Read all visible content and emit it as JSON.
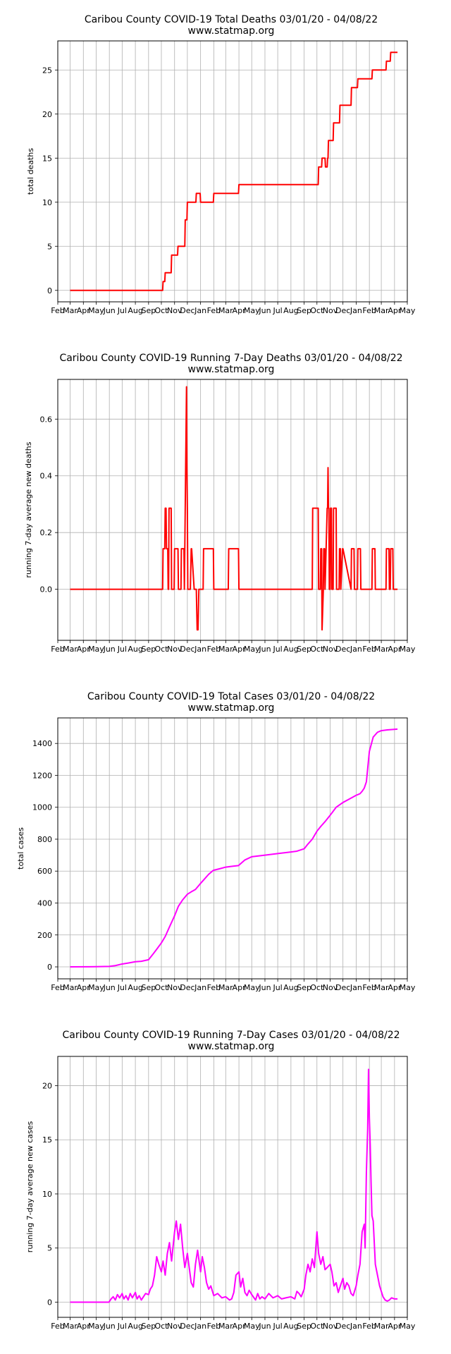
{
  "chart_data": [
    {
      "type": "line",
      "title": "Caribou County COVID-19 Total Deaths 03/01/20 - 04/08/22",
      "subtitle": "www.statmap.org",
      "xlabel": "",
      "ylabel": "total deaths",
      "x_tick_labels": [
        "Feb",
        "Mar",
        "Apr",
        "May",
        "Jun",
        "Jul",
        "Aug",
        "Sep",
        "Oct",
        "Nov",
        "Dec",
        "Jan",
        "Feb",
        "Mar",
        "Apr",
        "May",
        "Jun",
        "Jul",
        "Aug",
        "Sep",
        "Oct",
        "Nov",
        "Dec",
        "Jan",
        "Feb",
        "Mar",
        "Apr",
        "May"
      ],
      "y_ticks": [
        0,
        5,
        10,
        15,
        20,
        25
      ],
      "xlim": [
        "2020-02-01",
        "2022-05-01"
      ],
      "ylim": [
        -1.3,
        28.3
      ],
      "grid": true,
      "color": "#ff0000",
      "series": [
        {
          "x": [
            "2020-03-01",
            "2020-10-04",
            "2020-10-05",
            "2020-10-09",
            "2020-10-10",
            "2020-10-16",
            "2020-10-17",
            "2020-10-24",
            "2020-10-25",
            "2020-11-01",
            "2020-11-02",
            "2020-11-08",
            "2020-11-09",
            "2020-11-13",
            "2020-11-14",
            "2020-11-25",
            "2020-11-26",
            "2020-11-30",
            "2020-12-01",
            "2020-12-03",
            "2020-12-04",
            "2020-12-21",
            "2020-12-22",
            "2020-12-31",
            "2021-01-01",
            "2021-01-31",
            "2021-02-01",
            "2021-02-28",
            "2021-03-01",
            "2021-03-31",
            "2021-04-01",
            "2021-09-20",
            "2021-09-21",
            "2021-10-04",
            "2021-10-05",
            "2021-10-08",
            "2021-10-09",
            "2021-10-12",
            "2021-10-13",
            "2021-10-20",
            "2021-10-21",
            "2021-10-25",
            "2021-10-26",
            "2021-10-27",
            "2021-10-28",
            "2021-11-08",
            "2021-11-09",
            "2021-11-23",
            "2021-11-24",
            "2021-12-20",
            "2021-12-21",
            "2022-01-04",
            "2022-01-05",
            "2022-02-07",
            "2022-02-08",
            "2022-03-12",
            "2022-03-13",
            "2022-03-22",
            "2022-03-23",
            "2022-04-08"
          ],
          "y": [
            0,
            0,
            1,
            1,
            2,
            2,
            2,
            2,
            4,
            4,
            4,
            4,
            5,
            5,
            5,
            5,
            8,
            8,
            10,
            10,
            10,
            10,
            11,
            11,
            10,
            10,
            11,
            11,
            11,
            11,
            12,
            12,
            12,
            12,
            14,
            14,
            14,
            14,
            15,
            15,
            14,
            14,
            15,
            15,
            17,
            17,
            19,
            19,
            21,
            21,
            23,
            23,
            24,
            24,
            25,
            25,
            26,
            26,
            27,
            27
          ]
        }
      ]
    },
    {
      "type": "line",
      "title": "Caribou County COVID-19 Running 7-Day Deaths 03/01/20 - 04/08/22",
      "subtitle": "www.statmap.org",
      "xlabel": "",
      "ylabel": "running 7-day average new deaths",
      "x_tick_labels": [
        "Feb",
        "Mar",
        "Apr",
        "May",
        "Jun",
        "Jul",
        "Aug",
        "Sep",
        "Oct",
        "Nov",
        "Dec",
        "Jan",
        "Feb",
        "Mar",
        "Apr",
        "May",
        "Jun",
        "Jul",
        "Aug",
        "Sep",
        "Oct",
        "Nov",
        "Dec",
        "Jan",
        "Feb",
        "Mar",
        "Apr",
        "May"
      ],
      "y_ticks": [
        0.0,
        0.2,
        0.4,
        0.6
      ],
      "y_tick_labels": [
        "0.0",
        "0.2",
        "0.4",
        "0.6"
      ],
      "xlim": [
        "2020-02-01",
        "2022-05-01"
      ],
      "ylim": [
        -0.18,
        0.74
      ],
      "grid": true,
      "color": "#ff0000",
      "series": [
        {
          "x": [
            "2020-03-01",
            "2020-10-04",
            "2020-10-05",
            "2020-10-09",
            "2020-10-10",
            "2020-10-12",
            "2020-10-13",
            "2020-10-16",
            "2020-10-17",
            "2020-10-18",
            "2020-10-19",
            "2020-10-24",
            "2020-10-25",
            "2020-10-31",
            "2020-11-01",
            "2020-11-09",
            "2020-11-10",
            "2020-11-16",
            "2020-11-17",
            "2020-11-23",
            "2020-11-24",
            "2020-11-26",
            "2020-11-27",
            "2020-11-28",
            "2020-11-29",
            "2020-11-30",
            "2020-12-01",
            "2020-12-02",
            "2020-12-03",
            "2020-12-08",
            "2020-12-10",
            "2020-12-11",
            "2020-12-17",
            "2020-12-22",
            "2020-12-24",
            "2020-12-26",
            "2020-12-28",
            "2020-12-31",
            "2021-01-01",
            "2021-01-07",
            "2021-01-08",
            "2021-01-31",
            "2021-02-01",
            "2021-02-07",
            "2021-02-08",
            "2021-03-07",
            "2021-03-08",
            "2021-03-31",
            "2021-04-01",
            "2021-04-07",
            "2021-04-08",
            "2021-09-20",
            "2021-09-21",
            "2021-10-04",
            "2021-10-05",
            "2021-10-09",
            "2021-10-10",
            "2021-10-12",
            "2021-10-13",
            "2021-10-16",
            "2021-10-17",
            "2021-10-19",
            "2021-10-20",
            "2021-10-25",
            "2021-10-26",
            "2021-10-27",
            "2021-10-28",
            "2021-10-29",
            "2021-10-30",
            "2021-11-01",
            "2021-11-02",
            "2021-11-04",
            "2021-11-05",
            "2021-11-08",
            "2021-11-09",
            "2021-11-15",
            "2021-11-16",
            "2021-11-22",
            "2021-11-23",
            "2021-11-25",
            "2021-11-26",
            "2021-11-30",
            "2021-12-01",
            "2021-12-20",
            "2021-12-21",
            "2021-12-27",
            "2021-12-28",
            "2022-01-04",
            "2022-01-05",
            "2022-01-11",
            "2022-01-12",
            "2022-02-07",
            "2022-02-08",
            "2022-02-14",
            "2022-02-15",
            "2022-03-12",
            "2022-03-13",
            "2022-03-19",
            "2022-03-20",
            "2022-03-22",
            "2022-03-23",
            "2022-03-28",
            "2022-03-29",
            "2022-04-08"
          ],
          "y": [
            0,
            0,
            0.143,
            0.143,
            0.286,
            0.286,
            0.143,
            0.143,
            0,
            0,
            0.286,
            0.286,
            0,
            0,
            0.143,
            0.143,
            0,
            0,
            0.143,
            0.143,
            0,
            0.286,
            0.429,
            0.571,
            0.714,
            0.429,
            0.286,
            0,
            0,
            0,
            0.143,
            0.143,
            0,
            0,
            -0.143,
            -0.143,
            0,
            0,
            0,
            0,
            0.143,
            0.143,
            0,
            0,
            0,
            0,
            0.143,
            0.143,
            0,
            0,
            0,
            0,
            0.286,
            0.286,
            0,
            0,
            0.143,
            0.143,
            -0.143,
            0,
            0.143,
            0.143,
            0,
            0.286,
            0.286,
            0.429,
            0.286,
            0.286,
            0,
            0,
            0.286,
            0.286,
            0,
            0,
            0.286,
            0.286,
            0,
            0,
            0.143,
            0.143,
            0,
            0.143,
            0.143,
            0,
            0.143,
            0.143,
            0,
            0,
            0.143,
            0.143,
            0,
            0,
            0.143,
            0.143,
            0,
            0,
            0.143,
            0.143,
            0,
            0,
            0.143,
            0.143,
            0,
            0
          ]
        }
      ]
    },
    {
      "type": "line",
      "title": "Caribou County COVID-19 Total Cases 03/01/20 - 04/08/22",
      "subtitle": "www.statmap.org",
      "xlabel": "",
      "ylabel": "total cases",
      "x_tick_labels": [
        "Feb",
        "Mar",
        "Apr",
        "May",
        "Jun",
        "Jul",
        "Aug",
        "Sep",
        "Oct",
        "Nov",
        "Dec",
        "Jan",
        "Feb",
        "Mar",
        "Apr",
        "May",
        "Jun",
        "Jul",
        "Aug",
        "Sep",
        "Oct",
        "Nov",
        "Dec",
        "Jan",
        "Feb",
        "Mar",
        "Apr",
        "May"
      ],
      "y_ticks": [
        0,
        200,
        400,
        600,
        800,
        1000,
        1200,
        1400
      ],
      "xlim": [
        "2020-02-01",
        "2022-05-01"
      ],
      "ylim": [
        -75,
        1560
      ],
      "grid": true,
      "color": "#ff00ff",
      "series": [
        {
          "x": [
            "2020-03-01",
            "2020-05-01",
            "2020-06-01",
            "2020-06-15",
            "2020-07-01",
            "2020-07-15",
            "2020-08-01",
            "2020-08-15",
            "2020-09-01",
            "2020-09-10",
            "2020-09-20",
            "2020-10-01",
            "2020-10-10",
            "2020-10-20",
            "2020-11-01",
            "2020-11-10",
            "2020-11-20",
            "2020-12-01",
            "2020-12-10",
            "2020-12-20",
            "2020-12-31",
            "2021-01-10",
            "2021-01-20",
            "2021-01-31",
            "2021-02-15",
            "2021-03-01",
            "2021-03-15",
            "2021-03-31",
            "2021-04-15",
            "2021-05-01",
            "2021-06-01",
            "2021-07-01",
            "2021-08-01",
            "2021-08-15",
            "2021-09-01",
            "2021-09-10",
            "2021-09-20",
            "2021-10-01",
            "2021-10-10",
            "2021-10-20",
            "2021-11-01",
            "2021-11-15",
            "2021-12-01",
            "2021-12-15",
            "2022-01-01",
            "2022-01-10",
            "2022-01-15",
            "2022-01-20",
            "2022-01-25",
            "2022-02-01",
            "2022-02-10",
            "2022-02-20",
            "2022-03-01",
            "2022-03-15",
            "2022-04-08"
          ],
          "y": [
            0,
            1,
            3,
            8,
            18,
            24,
            32,
            35,
            45,
            75,
            110,
            150,
            190,
            250,
            320,
            380,
            420,
            455,
            470,
            485,
            520,
            550,
            580,
            605,
            615,
            625,
            630,
            635,
            670,
            690,
            700,
            710,
            720,
            725,
            740,
            770,
            800,
            850,
            880,
            910,
            950,
            1000,
            1030,
            1050,
            1075,
            1085,
            1100,
            1120,
            1160,
            1350,
            1440,
            1470,
            1480,
            1485,
            1490
          ]
        }
      ]
    },
    {
      "type": "line",
      "title": "Caribou County COVID-19 Running 7-Day Cases 03/01/20 - 04/08/22",
      "subtitle": "www.statmap.org",
      "xlabel": "",
      "ylabel": "running 7-day average new cases",
      "x_tick_labels": [
        "Feb",
        "Mar",
        "Apr",
        "May",
        "Jun",
        "Jul",
        "Aug",
        "Sep",
        "Oct",
        "Nov",
        "Dec",
        "Jan",
        "Feb",
        "Mar",
        "Apr",
        "May",
        "Jun",
        "Jul",
        "Aug",
        "Sep",
        "Oct",
        "Nov",
        "Dec",
        "Jan",
        "Feb",
        "Mar",
        "Apr",
        "May"
      ],
      "y_ticks": [
        0,
        5,
        10,
        15,
        20
      ],
      "xlim": [
        "2020-02-01",
        "2022-05-01"
      ],
      "ylim": [
        -1.4,
        22.7
      ],
      "grid": true,
      "color": "#ff00ff",
      "series": [
        {
          "x": [
            "2020-03-01",
            "2020-05-31",
            "2020-06-05",
            "2020-06-10",
            "2020-06-15",
            "2020-06-20",
            "2020-06-25",
            "2020-07-01",
            "2020-07-05",
            "2020-07-10",
            "2020-07-15",
            "2020-07-20",
            "2020-07-25",
            "2020-08-01",
            "2020-08-05",
            "2020-08-10",
            "2020-08-15",
            "2020-08-20",
            "2020-08-25",
            "2020-09-01",
            "2020-09-05",
            "2020-09-10",
            "2020-09-15",
            "2020-09-20",
            "2020-09-25",
            "2020-10-01",
            "2020-10-05",
            "2020-10-10",
            "2020-10-15",
            "2020-10-20",
            "2020-10-25",
            "2020-11-01",
            "2020-11-05",
            "2020-11-10",
            "2020-11-15",
            "2020-11-20",
            "2020-11-25",
            "2020-12-01",
            "2020-12-05",
            "2020-12-10",
            "2020-12-15",
            "2020-12-20",
            "2020-12-25",
            "2021-01-01",
            "2021-01-05",
            "2021-01-10",
            "2021-01-15",
            "2021-01-20",
            "2021-01-25",
            "2021-02-01",
            "2021-02-10",
            "2021-02-20",
            "2021-03-01",
            "2021-03-10",
            "2021-03-15",
            "2021-03-20",
            "2021-03-25",
            "2021-04-01",
            "2021-04-05",
            "2021-04-10",
            "2021-04-15",
            "2021-04-20",
            "2021-04-25",
            "2021-05-01",
            "2021-05-10",
            "2021-05-15",
            "2021-05-20",
            "2021-05-25",
            "2021-06-01",
            "2021-06-10",
            "2021-06-20",
            "2021-07-01",
            "2021-07-10",
            "2021-07-20",
            "2021-08-01",
            "2021-08-10",
            "2021-08-15",
            "2021-08-20",
            "2021-08-25",
            "2021-09-01",
            "2021-09-05",
            "2021-09-10",
            "2021-09-15",
            "2021-09-20",
            "2021-09-25",
            "2021-10-01",
            "2021-10-05",
            "2021-10-10",
            "2021-10-15",
            "2021-10-20",
            "2021-10-25",
            "2021-11-01",
            "2021-11-05",
            "2021-11-10",
            "2021-11-15",
            "2021-11-20",
            "2021-11-25",
            "2021-12-01",
            "2021-12-05",
            "2021-12-10",
            "2021-12-15",
            "2021-12-20",
            "2021-12-25",
            "2022-01-01",
            "2022-01-05",
            "2022-01-10",
            "2022-01-15",
            "2022-01-20",
            "2022-01-22",
            "2022-01-25",
            "2022-01-28",
            "2022-01-30",
            "2022-02-01",
            "2022-02-03",
            "2022-02-05",
            "2022-02-07",
            "2022-02-10",
            "2022-02-15",
            "2022-02-20",
            "2022-02-25",
            "2022-03-01",
            "2022-03-05",
            "2022-03-10",
            "2022-03-15",
            "2022-03-20",
            "2022-03-25",
            "2022-04-01",
            "2022-04-08"
          ],
          "y": [
            0,
            0,
            0.3,
            0.5,
            0.2,
            0.7,
            0.4,
            0.8,
            0.3,
            0.6,
            0.2,
            0.8,
            0.4,
            0.9,
            0.3,
            0.6,
            0.2,
            0.5,
            0.8,
            0.7,
            1.2,
            1.5,
            2.5,
            4.2,
            3.5,
            2.8,
            3.8,
            2.5,
            4.5,
            5.5,
            3.8,
            6.5,
            7.5,
            5.8,
            7.2,
            5,
            3.2,
            4.5,
            3.3,
            1.8,
            1.4,
            3.5,
            4.8,
            2.8,
            4.2,
            3.2,
            1.8,
            1.2,
            1.5,
            0.6,
            0.8,
            0.4,
            0.5,
            0.2,
            0.3,
            0.9,
            2.5,
            2.8,
            1.4,
            2.2,
            0.9,
            0.6,
            1.1,
            0.7,
            0.2,
            0.8,
            0.3,
            0.5,
            0.3,
            0.8,
            0.4,
            0.6,
            0.3,
            0.4,
            0.5,
            0.3,
            1,
            0.8,
            0.5,
            1.2,
            2.5,
            3.5,
            2.8,
            4,
            3.2,
            6.5,
            4.5,
            3.5,
            4.2,
            3,
            3.2,
            3.5,
            2.8,
            1.5,
            1.8,
            0.9,
            1.5,
            2.2,
            1.2,
            1.8,
            1.5,
            0.8,
            0.6,
            1.5,
            2.5,
            3.5,
            6.5,
            7.2,
            5,
            12,
            16,
            21.5,
            17,
            14.5,
            11,
            8,
            7.5,
            3.5,
            2.5,
            1.5,
            1,
            0.5,
            0.2,
            0.1,
            0.2,
            0.4,
            0.3,
            0.3
          ]
        }
      ]
    }
  ]
}
